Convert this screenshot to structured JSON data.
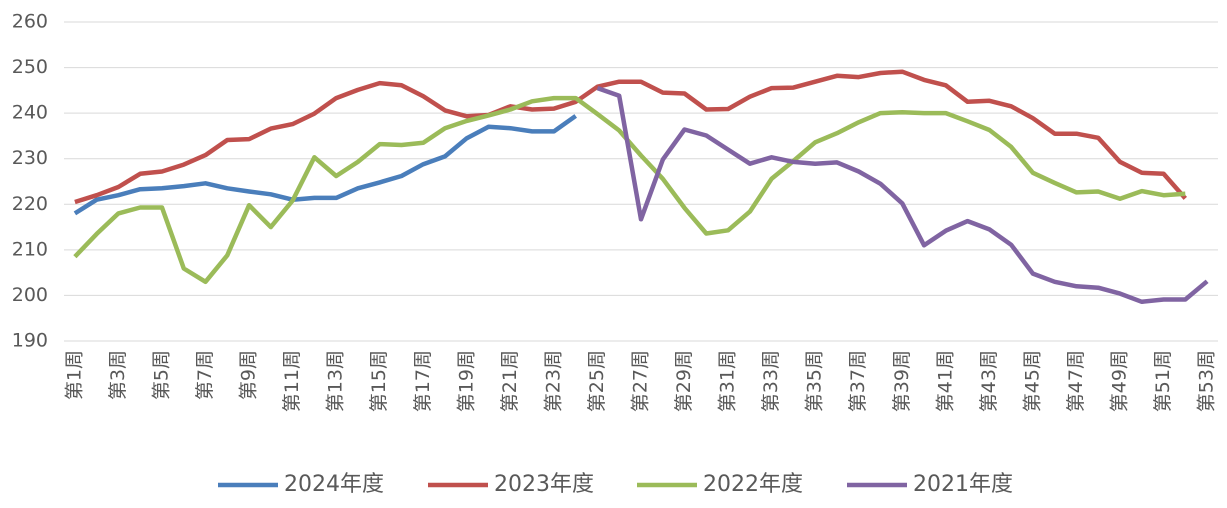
{
  "chart_data": {
    "type": "line",
    "categories": [
      "第1周",
      null,
      "第3周",
      null,
      "第5周",
      null,
      "第7周",
      null,
      "第9周",
      null,
      "第11周",
      null,
      "第13周",
      null,
      "第15周",
      null,
      "第17周",
      null,
      "第19周",
      null,
      "第21周",
      null,
      "第23周",
      null,
      "第25周",
      null,
      "第27周",
      null,
      "第29周",
      null,
      "第31周",
      null,
      "第33周",
      null,
      "第35周",
      null,
      "第37周",
      null,
      "第39周",
      null,
      "第41周",
      null,
      "第43周",
      null,
      "第45周",
      null,
      "第47周",
      null,
      "第49周",
      null,
      "第51周",
      null,
      "第53周"
    ],
    "series": [
      {
        "name": "2024年度",
        "color": "#4a7ebb",
        "values": [
          218,
          221,
          222,
          223.3,
          223.5,
          224,
          224.6,
          223.5,
          222.8,
          222.2,
          221,
          221.4,
          221.4,
          223.5,
          224.8,
          226.2,
          228.8,
          230.5,
          234.5,
          237,
          236.7,
          236,
          236,
          239.4,
          null,
          null,
          null,
          null,
          null,
          null,
          null,
          null,
          null,
          null,
          null,
          null,
          null,
          null,
          null,
          null,
          null,
          null,
          null,
          null,
          null,
          null,
          null,
          null,
          null,
          null,
          null,
          null,
          null
        ]
      },
      {
        "name": "2023年度",
        "color": "#c0504d",
        "values": [
          220.5,
          222,
          223.8,
          226.7,
          227.2,
          228.7,
          230.8,
          234.1,
          234.3,
          236.6,
          237.6,
          239.9,
          243.3,
          245.1,
          246.6,
          246.1,
          243.7,
          240.6,
          239.3,
          239.6,
          241.5,
          240.8,
          241,
          242.5,
          245.8,
          246.9,
          246.9,
          244.5,
          244.3,
          240.8,
          240.9,
          243.6,
          245.5,
          245.6,
          246.9,
          248.2,
          247.9,
          248.8,
          249.1,
          247.3,
          246.1,
          242.5,
          242.7,
          241.5,
          238.9,
          235.5,
          235.5,
          234.6,
          229.3,
          226.9,
          226.7,
          221.3,
          null
        ]
      },
      {
        "name": "2022年度",
        "color": "#9bbb59",
        "values": [
          208.5,
          213.5,
          218,
          219.3,
          219.3,
          205.9,
          203,
          208.8,
          219.8,
          215,
          220.8,
          230.3,
          226.2,
          229.3,
          233.2,
          233,
          233.5,
          236.7,
          238.3,
          239.5,
          240.8,
          242.6,
          243.3,
          243.3,
          239.8,
          236.2,
          230.7,
          225.6,
          219.2,
          213.6,
          214.3,
          218.4,
          225.6,
          229.5,
          233.6,
          235.6,
          238,
          240,
          240.2,
          240,
          240,
          238.2,
          236.3,
          232.6,
          226.9,
          224.7,
          222.6,
          222.8,
          221.2,
          222.9,
          222,
          222.3,
          null
        ]
      },
      {
        "name": "2021年度",
        "color": "#8064a2",
        "values": [
          null,
          null,
          null,
          null,
          null,
          null,
          null,
          null,
          null,
          null,
          null,
          null,
          null,
          null,
          null,
          null,
          null,
          null,
          null,
          null,
          null,
          null,
          null,
          null,
          245.5,
          243.8,
          216.7,
          229.8,
          236.4,
          235.1,
          232,
          228.9,
          230.3,
          229.3,
          228.9,
          229.2,
          227.2,
          224.5,
          220.2,
          211,
          214.2,
          216.3,
          214.5,
          211.1,
          204.8,
          203,
          202,
          201.7,
          200.4,
          198.6,
          199.1,
          199.1,
          203.1
        ]
      }
    ],
    "ylim": [
      190,
      260
    ],
    "yticks": [
      190,
      200,
      210,
      220,
      230,
      240,
      250,
      260
    ],
    "grid": true,
    "legend": "bottom"
  }
}
